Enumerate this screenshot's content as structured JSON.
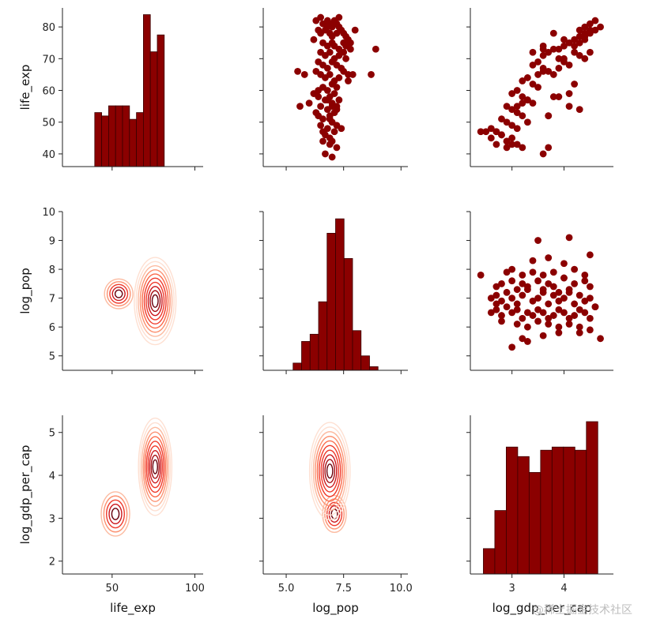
{
  "figure": {
    "watermark": "@稀土掘金技术社区",
    "colors": {
      "main": "#8b0000",
      "edge": "#3a0000"
    }
  },
  "chart_data": {
    "type": "pairplot",
    "variables": [
      "life_exp",
      "log_pop",
      "log_gdp_per_cap"
    ],
    "labels": {
      "x": [
        "life_exp",
        "log_pop",
        "log_gdp_per_cap"
      ],
      "y": [
        "life_exp",
        "log_pop",
        "log_gdp_per_cap"
      ]
    },
    "ranges": {
      "life_exp": [
        20,
        105
      ],
      "log_pop": [
        4.0,
        10.3
      ],
      "log_gdp_per_cap": [
        2.2,
        4.95
      ],
      "life_exp_y": [
        36,
        86
      ],
      "log_pop_y": [
        4.5,
        10.0
      ],
      "log_gdp_y": [
        1.7,
        5.4
      ]
    },
    "ticks": {
      "life_exp_x": [
        50,
        100
      ],
      "log_pop_x": [
        5.0,
        7.5,
        10.0
      ],
      "log_gdp_x": [
        3,
        4
      ],
      "life_exp_y": [
        40,
        50,
        60,
        70,
        80
      ],
      "log_pop_y": [
        5,
        6,
        7,
        8,
        9,
        10
      ],
      "log_gdp_y": [
        2,
        3,
        4,
        5
      ]
    },
    "tick_labels": {
      "life_exp_x": [
        "50",
        "100"
      ],
      "log_pop_x": [
        "5.0",
        "7.5",
        "10.0"
      ],
      "log_gdp_x": [
        "3",
        "4"
      ],
      "life_exp_y": [
        "40",
        "50",
        "60",
        "70",
        "80"
      ],
      "log_pop_y": [
        "5",
        "6",
        "7",
        "8",
        "9",
        "10"
      ],
      "log_gdp_y": [
        "2",
        "3",
        "4",
        "5"
      ]
    },
    "histograms": {
      "life_exp": {
        "edges": [
          39.5,
          43.7,
          47.9,
          52.1,
          56.3,
          60.5,
          64.7,
          68.9,
          73.1,
          77.3,
          81.5
        ],
        "counts": [
          8,
          7.5,
          9,
          9,
          9,
          7,
          8,
          22.5,
          17,
          19.5
        ],
        "max": 23.5
      },
      "log_pop": {
        "edges": [
          5.3,
          5.67,
          6.04,
          6.41,
          6.78,
          7.15,
          7.52,
          7.89,
          8.26,
          8.63,
          9.0
        ],
        "counts": [
          2,
          8,
          10,
          19,
          38,
          42,
          31,
          11,
          4,
          1
        ],
        "max": 44
      },
      "log_gdp_per_cap": {
        "edges": [
          2.45,
          2.67,
          2.89,
          3.11,
          3.33,
          3.55,
          3.77,
          3.99,
          4.21,
          4.43,
          4.65
        ],
        "counts": [
          4,
          10,
          20,
          18.5,
          16,
          19.5,
          20,
          20,
          19.5,
          24
        ],
        "max": 25
      }
    },
    "scatter": {
      "life_exp_vs_log_pop": {
        "x": [
          6.3,
          6.6,
          6.8,
          6.9,
          7.0,
          7.1,
          7.2,
          7.3,
          6.4,
          6.5,
          6.7,
          6.9,
          7.0,
          7.2,
          7.4,
          7.5,
          7.6,
          7.7,
          7.8,
          6.2,
          6.6,
          6.8,
          7.0,
          7.1,
          7.3,
          7.6,
          6.5,
          6.7,
          6.9,
          7.1,
          7.3,
          7.5,
          6.4,
          6.6,
          6.8,
          7.0,
          7.2,
          7.4,
          6.3,
          6.5,
          6.7,
          6.9,
          7.1,
          7.3,
          7.5,
          7.7,
          6.6,
          6.8,
          7.0,
          7.2,
          6.4,
          6.7,
          6.9,
          7.1,
          7.3,
          6.5,
          6.8,
          7.0,
          7.2,
          6.6,
          6.9,
          7.1,
          6.5,
          6.8,
          7.0,
          7.2,
          6.7,
          6.9,
          7.1,
          6.6,
          6.9,
          7.2,
          5.5,
          5.8,
          7.9,
          8.9,
          8.7,
          6.2,
          6.4,
          6.8,
          7.0,
          7.2,
          5.6,
          6.0,
          7.7,
          6.3,
          6.9,
          7.4,
          6.6,
          7.0,
          8.0,
          6.5,
          6.8,
          7.1,
          7.3,
          7.5,
          7.6,
          6.4,
          6.7,
          7.0,
          7.8
        ],
        "y": [
          82,
          81,
          82,
          81,
          80,
          82,
          81,
          80,
          79,
          78,
          79,
          78,
          77,
          78,
          79,
          78,
          77,
          76,
          75,
          76,
          75,
          74,
          75,
          74,
          73,
          74,
          72,
          71,
          72,
          70,
          71,
          72,
          69,
          68,
          67,
          69,
          68,
          67,
          66,
          65,
          64,
          65,
          63,
          64,
          66,
          65,
          61,
          60,
          62,
          61,
          58,
          57,
          58,
          59,
          57,
          55,
          54,
          56,
          55,
          51,
          52,
          53,
          49,
          48,
          50,
          49,
          46,
          45,
          47,
          44,
          43,
          42,
          66,
          65,
          65,
          73,
          65,
          59,
          60,
          57,
          55,
          54,
          55,
          56,
          63,
          53,
          51,
          48,
          47,
          44,
          79,
          83,
          80,
          81,
          83,
          75,
          70,
          52,
          40,
          39,
          73
        ],
        "xlim": [
          4.0,
          10.3
        ],
        "ylim": [
          36,
          86
        ]
      },
      "life_exp_vs_log_gdp_per_cap": {
        "x": [
          4.3,
          4.4,
          4.5,
          4.6,
          4.4,
          4.5,
          4.3,
          4.2,
          4.1,
          4.0,
          3.9,
          4.2,
          4.3,
          4.4,
          4.5,
          3.8,
          3.7,
          3.6,
          3.9,
          4.0,
          4.1,
          3.5,
          3.4,
          3.6,
          3.7,
          3.8,
          3.3,
          3.2,
          3.4,
          3.5,
          3.1,
          3.0,
          3.2,
          3.3,
          3.4,
          2.9,
          3.0,
          3.1,
          3.2,
          2.8,
          2.9,
          3.0,
          3.1,
          2.7,
          2.8,
          3.0,
          2.9,
          3.1,
          3.2,
          2.6,
          2.7,
          2.8,
          2.5,
          2.7,
          2.9,
          3.0,
          3.1,
          3.3,
          3.5,
          3.6,
          4.0,
          3.9,
          3.7,
          4.1,
          4.2,
          4.6,
          4.7,
          4.5,
          4.4,
          4.2,
          4.0,
          3.8,
          3.6,
          3.4,
          2.4,
          2.6,
          3.2,
          3.6,
          3.7,
          3.3,
          2.9,
          4.1,
          4.3,
          3.7,
          3.9,
          3.8,
          3.6,
          4.4,
          4.3
        ],
        "y": [
          79,
          80,
          81,
          82,
          78,
          79,
          77,
          76,
          75,
          74,
          73,
          72,
          71,
          70,
          72,
          73,
          72,
          71,
          70,
          69,
          68,
          69,
          68,
          67,
          66,
          65,
          64,
          63,
          62,
          61,
          60,
          59,
          58,
          57,
          56,
          55,
          54,
          53,
          52,
          51,
          50,
          49,
          48,
          47,
          46,
          45,
          44,
          43,
          42,
          48,
          47,
          46,
          47,
          43,
          42,
          43,
          55,
          57,
          65,
          66,
          70,
          67,
          52,
          59,
          62,
          79,
          80,
          78,
          76,
          74,
          76,
          78,
          74,
          72,
          47,
          45,
          56,
          40,
          42,
          50,
          44,
          55,
          54,
          52,
          58,
          58,
          73,
          77,
          75
        ],
        "xlim": [
          2.2,
          4.95
        ],
        "ylim": [
          36,
          86
        ]
      },
      "log_pop_vs_log_gdp_per_cap": {
        "x": [
          2.4,
          2.6,
          2.7,
          2.8,
          2.9,
          3.0,
          3.1,
          3.2,
          3.3,
          3.4,
          3.5,
          3.6,
          3.7,
          3.8,
          3.9,
          4.0,
          4.1,
          4.2,
          4.3,
          4.4,
          4.5,
          4.6,
          2.6,
          2.7,
          2.8,
          2.9,
          3.0,
          3.1,
          3.2,
          3.3,
          3.4,
          3.5,
          3.6,
          3.7,
          3.8,
          3.9,
          4.0,
          4.1,
          4.2,
          4.3,
          4.4,
          4.5,
          4.6,
          2.7,
          2.8,
          3.0,
          3.1,
          3.2,
          3.3,
          3.5,
          3.6,
          3.7,
          3.8,
          4.0,
          4.1,
          4.2,
          4.4,
          4.5,
          2.9,
          3.0,
          3.2,
          3.4,
          3.6,
          3.8,
          4.0,
          4.2,
          4.4,
          2.8,
          3.1,
          3.3,
          3.5,
          3.7,
          3.9,
          4.1,
          4.3,
          4.5,
          3.4,
          3.7,
          3.2,
          3.6,
          3.9,
          4.3,
          4.7,
          3.5,
          4.0,
          4.1,
          3.0,
          3.3,
          2.7,
          4.5,
          3.9
        ],
        "y": [
          7.8,
          7.0,
          7.1,
          6.9,
          7.2,
          7.0,
          6.8,
          7.1,
          7.3,
          6.9,
          7.0,
          7.2,
          6.8,
          7.1,
          6.9,
          7.0,
          7.2,
          6.8,
          7.1,
          6.9,
          7.0,
          6.7,
          6.5,
          6.6,
          6.4,
          6.7,
          6.5,
          6.6,
          6.3,
          6.5,
          6.4,
          6.6,
          6.5,
          6.3,
          6.4,
          6.6,
          6.5,
          6.3,
          6.4,
          6.6,
          6.5,
          6.3,
          6.7,
          7.4,
          7.5,
          7.6,
          7.3,
          7.5,
          7.4,
          7.6,
          7.3,
          7.5,
          7.4,
          7.7,
          7.3,
          7.5,
          7.6,
          7.4,
          7.9,
          8.0,
          7.8,
          7.9,
          7.8,
          7.9,
          7.7,
          8.0,
          7.8,
          6.2,
          6.1,
          6.0,
          6.2,
          6.1,
          6.0,
          6.1,
          6.0,
          5.9,
          8.3,
          8.4,
          5.6,
          5.7,
          5.8,
          5.8,
          5.6,
          9.0,
          8.2,
          9.1,
          5.3,
          5.5,
          6.8,
          8.5,
          7.2
        ],
        "xlim": [
          2.2,
          4.95
        ],
        "ylim": [
          4.5,
          10.0
        ]
      }
    },
    "kde": {
      "log_pop_vs_life_exp": {
        "xlim": [
          20,
          105
        ],
        "ylim": [
          4.5,
          10.0
        ],
        "peaks": [
          {
            "x": 76,
            "y": 6.9,
            "sx": 5,
            "sy": 0.6
          },
          {
            "x": 54,
            "y": 7.15,
            "sx": 5,
            "sy": 0.3
          }
        ],
        "levels": 10
      },
      "log_gdp_per_cap_vs_life_exp": {
        "xlim": [
          20,
          105
        ],
        "ylim": [
          1.7,
          5.4
        ],
        "peaks": [
          {
            "x": 76,
            "y": 4.2,
            "sx": 4,
            "sy": 0.45
          },
          {
            "x": 52,
            "y": 3.1,
            "sx": 5,
            "sy": 0.3
          }
        ],
        "levels": 10
      },
      "log_gdp_per_cap_vs_log_pop": {
        "xlim": [
          4.0,
          10.3
        ],
        "ylim": [
          1.7,
          5.4
        ],
        "peaks": [
          {
            "x": 6.9,
            "y": 4.1,
            "sx": 0.35,
            "sy": 0.45
          },
          {
            "x": 7.1,
            "y": 3.1,
            "sx": 0.3,
            "sy": 0.25
          }
        ],
        "levels": 10
      }
    },
    "kde_colors": [
      "#fee0d2",
      "#fcbba1",
      "#fc9272",
      "#fb6a4a",
      "#ef3b2c",
      "#cb181d",
      "#a50f15",
      "#67000d"
    ]
  }
}
